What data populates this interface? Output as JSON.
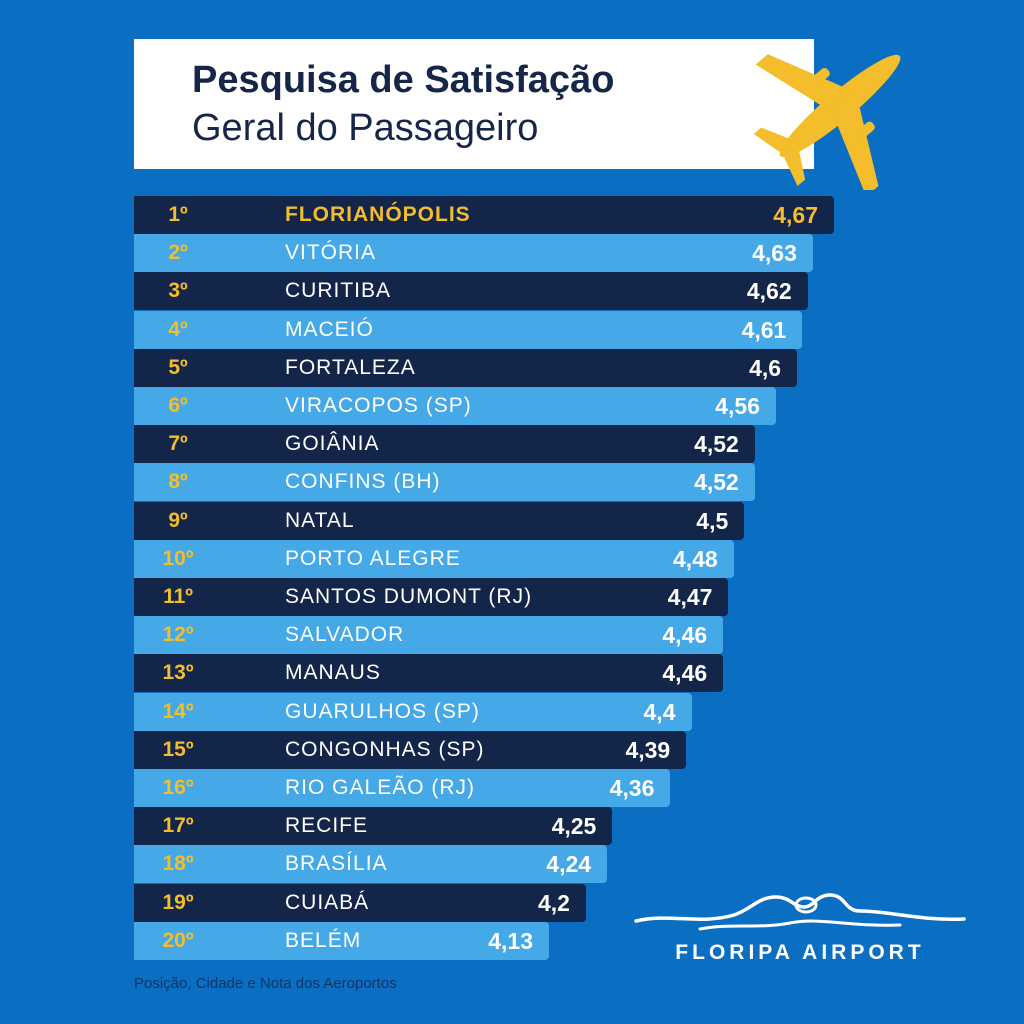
{
  "header": {
    "title_line1": "Pesquisa de Satisfação",
    "title_line2": "Geral do Passageiro"
  },
  "icons": {
    "plane": "plane-icon",
    "logo": "floripa-logo-icon"
  },
  "colors": {
    "background": "#0a6fc2",
    "row_dark": "#14254a",
    "row_light": "#44a9e6",
    "highlight": "#f3bd2b",
    "text": "#ffffff"
  },
  "chart_data": {
    "type": "bar",
    "orientation": "horizontal",
    "ranks": [
      "1º",
      "2º",
      "3º",
      "4º",
      "5º",
      "6º",
      "7º",
      "8º",
      "9º",
      "10º",
      "11º",
      "12º",
      "13º",
      "14º",
      "15º",
      "16º",
      "17º",
      "18º",
      "19º",
      "20º"
    ],
    "categories": [
      "FLORIANÓPOLIS",
      "VITÓRIA",
      "CURITIBA",
      "MACEIÓ",
      "FORTALEZA",
      "VIRACOPOS (SP)",
      "GOIÂNIA",
      "CONFINS (BH)",
      "NATAL",
      "PORTO ALEGRE",
      "SANTOS DUMONT (RJ)",
      "SALVADOR",
      "MANAUS",
      "GUARULHOS (SP)",
      "CONGONHAS (SP)",
      "RIO GALEÃO (RJ)",
      "RECIFE",
      "BRASÍLIA",
      "CUIABÁ",
      "BELÉM"
    ],
    "values": [
      4.67,
      4.63,
      4.62,
      4.61,
      4.6,
      4.56,
      4.52,
      4.52,
      4.5,
      4.48,
      4.47,
      4.46,
      4.46,
      4.4,
      4.39,
      4.36,
      4.25,
      4.24,
      4.2,
      4.13
    ],
    "value_labels": [
      "4,67",
      "4,63",
      "4,62",
      "4,61",
      "4,6",
      "4,56",
      "4,52",
      "4,52",
      "4,5",
      "4,48",
      "4,47",
      "4,46",
      "4,46",
      "4,4",
      "4,39",
      "4,36",
      "4,25",
      "4,24",
      "4,2",
      "4,13"
    ],
    "highlight_index": 0
  },
  "footer": {
    "note": "Posição, Cidade e Nota dos Aeroportos",
    "brand": "FLORIPA AIRPORT"
  }
}
